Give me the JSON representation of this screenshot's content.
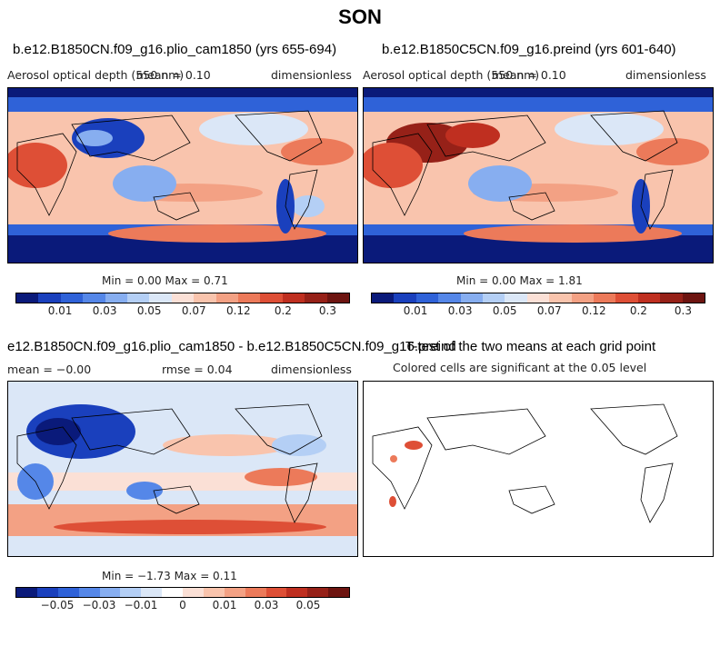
{
  "title": "SON",
  "panels": [
    {
      "title": "b.e12.B1850CN.f09_g16.plio_cam1850 (yrs 655-694)",
      "variable": "Aerosol optical depth (550 nm)",
      "mean_text": "mean =   0.10",
      "units": "dimensionless",
      "minmax": "Min =    0.00 Max =    0.71"
    },
    {
      "title": "b.e12.B1850C5CN.f09_g16.preind (yrs 601-640)",
      "variable": "Aerosol optical depth (550 nm)",
      "mean_text": "mean =   0.10",
      "units": "dimensionless",
      "minmax": "Min =    0.00 Max =    1.81"
    },
    {
      "title": "e12.B1850CN.f09_g16.plio_cam1850 - b.e12.B1850C5CN.f09_g16.preind",
      "mean_text": "mean =  −0.00",
      "rmse_text": "rmse =    0.04",
      "units": "dimensionless",
      "minmax": "Min =  −1.73 Max =    0.11"
    },
    {
      "title": "T-test of the two means at each grid point",
      "subtitle": "Colored cells are significant at the 0.05 level"
    }
  ],
  "colorbar_abs": {
    "colors": [
      "#0a1a7a",
      "#1a40bd",
      "#2f62d8",
      "#5587e8",
      "#87aef0",
      "#b4cff5",
      "#dbe7f7",
      "#fbe0d6",
      "#f9c4ad",
      "#f3a184",
      "#ec7a5a",
      "#de4f36",
      "#bf2f20",
      "#962118",
      "#6d1410"
    ],
    "labels": [
      "0.01",
      "0.03",
      "0.05",
      "0.07",
      "0.12",
      "0.2",
      "0.3"
    ]
  },
  "colorbar_diff": {
    "colors": [
      "#0a1a7a",
      "#1a40bd",
      "#2f62d8",
      "#5587e8",
      "#87aef0",
      "#b4cff5",
      "#dbe7f7",
      "#ffffff",
      "#fbe0d6",
      "#f9c4ad",
      "#f3a184",
      "#ec7a5a",
      "#de4f36",
      "#bf2f20",
      "#962118",
      "#6d1410"
    ],
    "labels": [
      "−0.05",
      "−0.03",
      "−0.01",
      "0",
      "0.01",
      "0.03",
      "0.05"
    ]
  }
}
